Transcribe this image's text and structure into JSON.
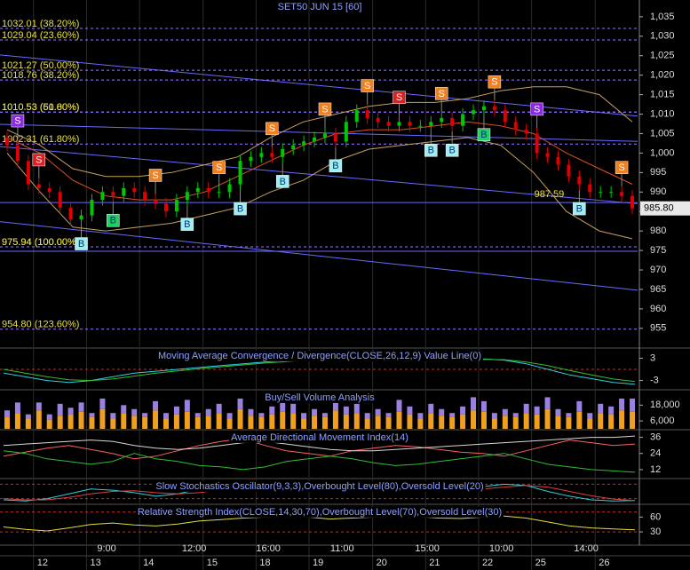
{
  "chart_data": {
    "type": "candlestick",
    "title": "SET50 JUN 15  [60]",
    "ylim": [
      950.4,
      1039.3
    ],
    "yticks": [
      {
        "value": 1035,
        "label": "1,035"
      },
      {
        "value": 1030,
        "label": "1,030"
      },
      {
        "value": 1025,
        "label": "1,025"
      },
      {
        "value": 1020,
        "label": "1,020"
      },
      {
        "value": 1015,
        "label": "1,015"
      },
      {
        "value": 1010,
        "label": "1,010"
      },
      {
        "value": 1005,
        "label": "1,005"
      },
      {
        "value": 1000,
        "label": "1,000"
      },
      995,
      990,
      985,
      980,
      975,
      970,
      965,
      960,
      955
    ],
    "dates": [
      null,
      null,
      null,
      "12",
      null,
      null,
      null,
      null,
      "13",
      null,
      null,
      null,
      null,
      "14",
      null,
      null,
      null,
      null,
      null,
      "15",
      null,
      null,
      null,
      null,
      "18",
      null,
      null,
      null,
      null,
      "19",
      null,
      null,
      null,
      null,
      null,
      "20",
      null,
      null,
      null,
      null,
      "21",
      null,
      null,
      null,
      null,
      "22",
      null,
      null,
      null,
      null,
      "25",
      null,
      null,
      null,
      null,
      null,
      "26",
      null,
      null,
      null,
      null
    ],
    "times": [
      null,
      null,
      null,
      null,
      null,
      null,
      null,
      null,
      null,
      "9:00",
      null,
      null,
      null,
      null,
      null,
      null,
      null,
      "12:00",
      null,
      null,
      null,
      null,
      null,
      null,
      "16:00",
      null,
      null,
      null,
      null,
      null,
      null,
      "11:00",
      null,
      null,
      null,
      null,
      null,
      null,
      null,
      "15:00",
      null,
      null,
      null,
      null,
      null,
      null,
      "10:00",
      null,
      null,
      null,
      null,
      null,
      null,
      null,
      "14:00",
      null,
      null,
      null,
      null,
      null
    ],
    "open": [
      1004,
      1002,
      998,
      992,
      991,
      990,
      986,
      983,
      984,
      988,
      990,
      989,
      991,
      990,
      988,
      987,
      985,
      988,
      990,
      991,
      990,
      990,
      992,
      998,
      999,
      1000,
      999,
      1001,
      1002,
      1003,
      1004,
      1005,
      1003,
      1008,
      1011,
      1009,
      1008,
      1007,
      1008,
      1007,
      1007,
      1008,
      1009,
      1007,
      1010,
      1011,
      1012,
      1011,
      1008,
      1006,
      1005,
      1000,
      999,
      997,
      994,
      992,
      990,
      990,
      990,
      989
    ],
    "high": [
      1005.5,
      1003.5,
      999.5,
      993.5,
      992.5,
      991.5,
      987.5,
      985.5,
      989.5,
      991.5,
      991.5,
      992.5,
      992.5,
      991.5,
      989.5,
      988.5,
      989.5,
      991.5,
      992.5,
      992.5,
      991.5,
      993.5,
      999.5,
      1000.5,
      1001.5,
      1001.5,
      1002.5,
      1003.5,
      1004.5,
      1005.5,
      1006.5,
      1006.5,
      1009.5,
      1012.5,
      1012.5,
      1010.5,
      1009.5,
      1009.5,
      1009.5,
      1008.5,
      1009.5,
      1010.5,
      1010.5,
      1011.5,
      1012.5,
      1013.5,
      1013.5,
      1012.5,
      1009.5,
      1007.5,
      1006.5,
      1001.5,
      1000.5,
      998.5,
      995.5,
      993.5,
      991.5,
      991.5,
      991.5,
      990.5
    ],
    "low": [
      1000.5,
      996.5,
      990.5,
      989.5,
      988.5,
      984.5,
      981.5,
      981.5,
      982.5,
      986.5,
      987.5,
      987.5,
      988.5,
      986.5,
      985.5,
      983.5,
      983.5,
      986.5,
      988.5,
      988.5,
      988.5,
      988.5,
      990.5,
      996.5,
      997.5,
      997.5,
      997.5,
      999.5,
      1000.5,
      1001.5,
      1002.5,
      1001.5,
      1001.5,
      1006.5,
      1007.5,
      1006.5,
      1005.5,
      1005.5,
      1005.5,
      1005.5,
      1005.5,
      1006.5,
      1005.5,
      1005.5,
      1008.5,
      1009.5,
      1009.5,
      1006.5,
      1004.5,
      1003.5,
      998.5,
      997.5,
      995.5,
      992.5,
      990.5,
      988.5,
      988.5,
      988.5,
      987.5,
      984.3
    ],
    "close": [
      1002,
      998,
      992,
      991,
      990,
      986,
      983,
      984,
      988,
      990,
      989,
      991,
      990,
      988,
      987,
      985,
      988,
      990,
      991,
      990,
      990,
      992,
      998,
      999,
      1000,
      999,
      1001,
      1002,
      1003,
      1004,
      1005,
      1003,
      1008,
      1011,
      1009,
      1008,
      1007,
      1008,
      1007,
      1007,
      1008,
      1009,
      1007,
      1010,
      1011,
      1012,
      1011,
      1008,
      1006,
      1005,
      1000,
      999,
      997,
      994,
      992,
      990,
      990,
      990,
      989,
      985.8
    ],
    "up_color": "#00c800",
    "down_color": "#e00000",
    "overlays": [
      {
        "color": "#c8a060",
        "values": [
          1006,
          1002,
          996,
          994,
          994,
          995,
          997,
          999,
          1004,
          1008,
          1010,
          1012,
          1013,
          1013,
          1014,
          1016,
          1017,
          1017,
          1015,
          1008
        ]
      },
      {
        "color": "#e05020",
        "values": [
          1004,
          1000,
          993,
          989,
          988,
          988,
          990,
          994,
          998,
          1002,
          1005,
          1006,
          1006,
          1007,
          1008,
          1007,
          1005,
          1000,
          996,
          992
        ]
      },
      {
        "color": "#c8a060",
        "values": [
          1000,
          990,
          981,
          980,
          981,
          982,
          984,
          986,
          990,
          993,
          998,
          1001,
          1002,
          1003,
          1004,
          1002,
          995,
          985,
          980,
          978
        ]
      }
    ],
    "trendlines": [
      [
        1025.2,
        1009.5
      ],
      [
        1007.4,
        1003
      ],
      [
        1001.7,
        987
      ],
      [
        982.4,
        964.8
      ],
      [
        987.3,
        987.3
      ],
      [
        974.8,
        974.8
      ]
    ],
    "trendline_color": "#6a6aff",
    "fib_levels": [
      {
        "value": 1032.01,
        "label": "1032.01 (38.20%)"
      },
      {
        "value": 1029.04,
        "label": "1029.04 (23.60%)"
      },
      {
        "value": 1021.27,
        "label": "1021.27 (50.00%)"
      },
      {
        "value": 1018.76,
        "label": "1018.76 (38.20%)"
      },
      {
        "value": 1010.53,
        "label": "1010.53 (50.00%)"
      },
      {
        "value": 1010.53,
        "label": "1010.53 (61.80%)"
      },
      {
        "value": 1002.31,
        "label": "1002.31 (61.80%)"
      },
      {
        "value": 975.94,
        "label": "975.94 (100.00%)"
      },
      {
        "value": 975.94,
        "label": "975.94 (100.00%)"
      },
      {
        "value": 954.8,
        "label": "954.80 (123.60%)"
      }
    ],
    "signals": [
      {
        "label": "S",
        "at": 1,
        "color": "#8a2be2"
      },
      {
        "label": "S",
        "at": 3,
        "color": "#e02020"
      },
      {
        "label": "B",
        "at": 7,
        "color": "#a0eef0"
      },
      {
        "label": "B",
        "at": 10,
        "color": "#20d060"
      },
      {
        "label": "S",
        "at": 14,
        "color": "#f08020"
      },
      {
        "label": "B",
        "at": 17,
        "color": "#a0eef0"
      },
      {
        "label": "S",
        "at": 20,
        "color": "#f08020"
      },
      {
        "label": "B",
        "at": 22,
        "color": "#a0eef0"
      },
      {
        "label": "S",
        "at": 25,
        "color": "#f08020"
      },
      {
        "label": "B",
        "at": 26,
        "color": "#a0eef0"
      },
      {
        "label": "S",
        "at": 30,
        "color": "#f08020"
      },
      {
        "label": "B",
        "at": 31,
        "color": "#a0eef0"
      },
      {
        "label": "S",
        "at": 34,
        "color": "#f08020"
      },
      {
        "label": "S",
        "at": 37,
        "color": "#e02020"
      },
      {
        "label": "B",
        "at": 40,
        "color": "#a0eef0"
      },
      {
        "label": "S",
        "at": 41,
        "color": "#f08020"
      },
      {
        "label": "B",
        "at": 42,
        "color": "#a0eef0"
      },
      {
        "label": "B",
        "at": 45,
        "color": "#20d060"
      },
      {
        "label": "S",
        "at": 46,
        "color": "#f08020"
      },
      {
        "label": "S",
        "at": 50,
        "color": "#8a2be2"
      },
      {
        "label": "B",
        "at": 54,
        "color": "#a0eef0"
      },
      {
        "label": "S",
        "at": 58,
        "color": "#f08020"
      }
    ],
    "annotation": {
      "value": 987.59,
      "label": "987.59",
      "at": 52
    },
    "last_price": {
      "value": 985.8,
      "label": "985.80"
    },
    "panels": [
      {
        "type": "line",
        "title": "Moving Average Convergence / Divergence(CLOSE,26,12,9) Value Line(0)",
        "ylim": [
          -5.25,
          5.5
        ],
        "yticks": [
          3,
          -3
        ],
        "levels": [
          0
        ],
        "series": [
          {
            "color": "#30d0e0",
            "values": [
              -1,
              -2,
              -3,
              -3.5,
              -3,
              -2,
              -1,
              -0.5,
              0,
              0.5,
              1,
              1.5,
              2,
              2.5,
              3,
              3.2,
              3.3,
              3,
              2.8,
              2.6,
              2.5,
              2.6,
              2.8,
              2.5,
              1.5,
              0,
              -1.5,
              -2.5,
              -3.5,
              -4
            ]
          },
          {
            "color": "#30c030",
            "values": [
              0,
              -1,
              -2,
              -2.8,
              -3,
              -2.6,
              -1.8,
              -1,
              -0.4,
              0.2,
              0.7,
              1.2,
              1.7,
              2.1,
              2.6,
              2.9,
              3.1,
              3.1,
              2.9,
              2.7,
              2.6,
              2.6,
              2.7,
              2.6,
              2,
              1,
              -0.3,
              -1.5,
              -2.6,
              -3.3
            ]
          }
        ]
      },
      {
        "type": "stacked_bar",
        "title": "Buy/Sell Volume Analysis",
        "ylim": [
          0,
          29000
        ],
        "yticks": [
          {
            "value": 18000,
            "label": "18,000"
          },
          {
            "value": 6000,
            "label": "6,000"
          }
        ],
        "series": [
          {
            "color": "#f0a020",
            "values": [
              9000,
              12000,
              8000,
              14000,
              7000,
              10000,
              11000,
              13000,
              9000,
              15000,
              8000,
              12000,
              10000,
              9000,
              14000,
              8000,
              11000,
              13000,
              9000,
              10000,
              12000,
              8000,
              15000,
              10000,
              9000,
              11000,
              13000,
              12000,
              8000,
              10000,
              9000,
              14000,
              11000,
              12000,
              8000,
              10000,
              9000,
              13000,
              11000,
              8000,
              12000,
              10000,
              9000,
              11000,
              14000,
              13000,
              8000,
              10000,
              9000,
              12000,
              11000,
              15000,
              10000,
              9000,
              13000,
              8000,
              12000,
              11000,
              14000,
              13000
            ]
          },
          {
            "color": "#9a80e0",
            "values": [
              5000,
              8000,
              3000,
              6000,
              4000,
              9000,
              5000,
              7000,
              3000,
              8000,
              4000,
              6000,
              5000,
              3000,
              7000,
              4000,
              6000,
              9000,
              3000,
              5000,
              7000,
              4000,
              8000,
              5000,
              3000,
              6000,
              9000,
              7000,
              4000,
              5000,
              3000,
              8000,
              6000,
              7000,
              4000,
              5000,
              3000,
              9000,
              6000,
              4000,
              7000,
              5000,
              3000,
              6000,
              10000,
              8000,
              4000,
              5000,
              3000,
              7000,
              6000,
              9000,
              5000,
              3000,
              8000,
              4000,
              7000,
              6000,
              9000,
              10000
            ]
          }
        ]
      },
      {
        "type": "line",
        "title": "Average Directional Movement Index(14)",
        "ylim": [
          6,
          41
        ],
        "yticks": [
          36,
          24,
          12
        ],
        "series": [
          {
            "color": "#ff6060",
            "values": [
              22,
              25,
              28,
              30,
              27,
              24,
              20,
              22,
              26,
              30,
              33,
              35,
              30,
              26,
              24,
              22,
              26,
              28,
              30,
              29,
              27,
              25,
              24,
              22,
              26,
              30,
              34,
              32,
              30,
              31
            ]
          },
          {
            "color": "#30c030",
            "values": [
              26,
              24,
              20,
              18,
              16,
              18,
              24,
              20,
              18,
              15,
              14,
              12,
              14,
              18,
              20,
              22,
              20,
              17,
              15,
              16,
              18,
              20,
              22,
              24,
              20,
              16,
              14,
              12,
              11,
              10
            ]
          },
          {
            "color": "#d8d8d8",
            "values": [
              30,
              31,
              32,
              33,
              34,
              33,
              30,
              28,
              27,
              28,
              30,
              32,
              33,
              31,
              29,
              27,
              26,
              26,
              27,
              28,
              29,
              30,
              31,
              32,
              33,
              34,
              35,
              36,
              36,
              37
            ]
          }
        ]
      },
      {
        "type": "line",
        "title": "Slow Stochastics Oscillator(9,3,3),Overbought Level(80),Oversold Level(20)",
        "ylim": [
          0,
          100
        ],
        "levels": [
          80,
          20
        ],
        "series": [
          {
            "color": "#30d0e0",
            "values": [
              15,
              10,
              20,
              40,
              60,
              55,
              45,
              30,
              40,
              60,
              75,
              80,
              85,
              70,
              60,
              65,
              80,
              85,
              75,
              60,
              50,
              55,
              70,
              80,
              75,
              50,
              30,
              15,
              10,
              12
            ]
          },
          {
            "color": "#e04040",
            "values": [
              20,
              15,
              15,
              25,
              40,
              50,
              53,
              45,
              40,
              45,
              58,
              72,
              80,
              78,
              70,
              65,
              70,
              78,
              80,
              72,
              60,
              55,
              60,
              68,
              75,
              68,
              50,
              32,
              18,
              12
            ]
          }
        ]
      },
      {
        "type": "line",
        "title": "Relative Strength Index(CLOSE,14,30,70),Overbought Level(70),Oversold Level(30)",
        "ylim": [
          5,
          84
        ],
        "yticks": [
          60,
          30
        ],
        "levels": [
          70,
          30
        ],
        "series": [
          {
            "color": "#e0e040",
            "values": [
              40,
              35,
              32,
              38,
              45,
              48,
              44,
              42,
              46,
              52,
              55,
              58,
              60,
              62,
              60,
              56,
              58,
              60,
              62,
              61,
              58,
              57,
              60,
              62,
              58,
              50,
              42,
              38,
              36,
              34
            ]
          }
        ]
      }
    ]
  }
}
